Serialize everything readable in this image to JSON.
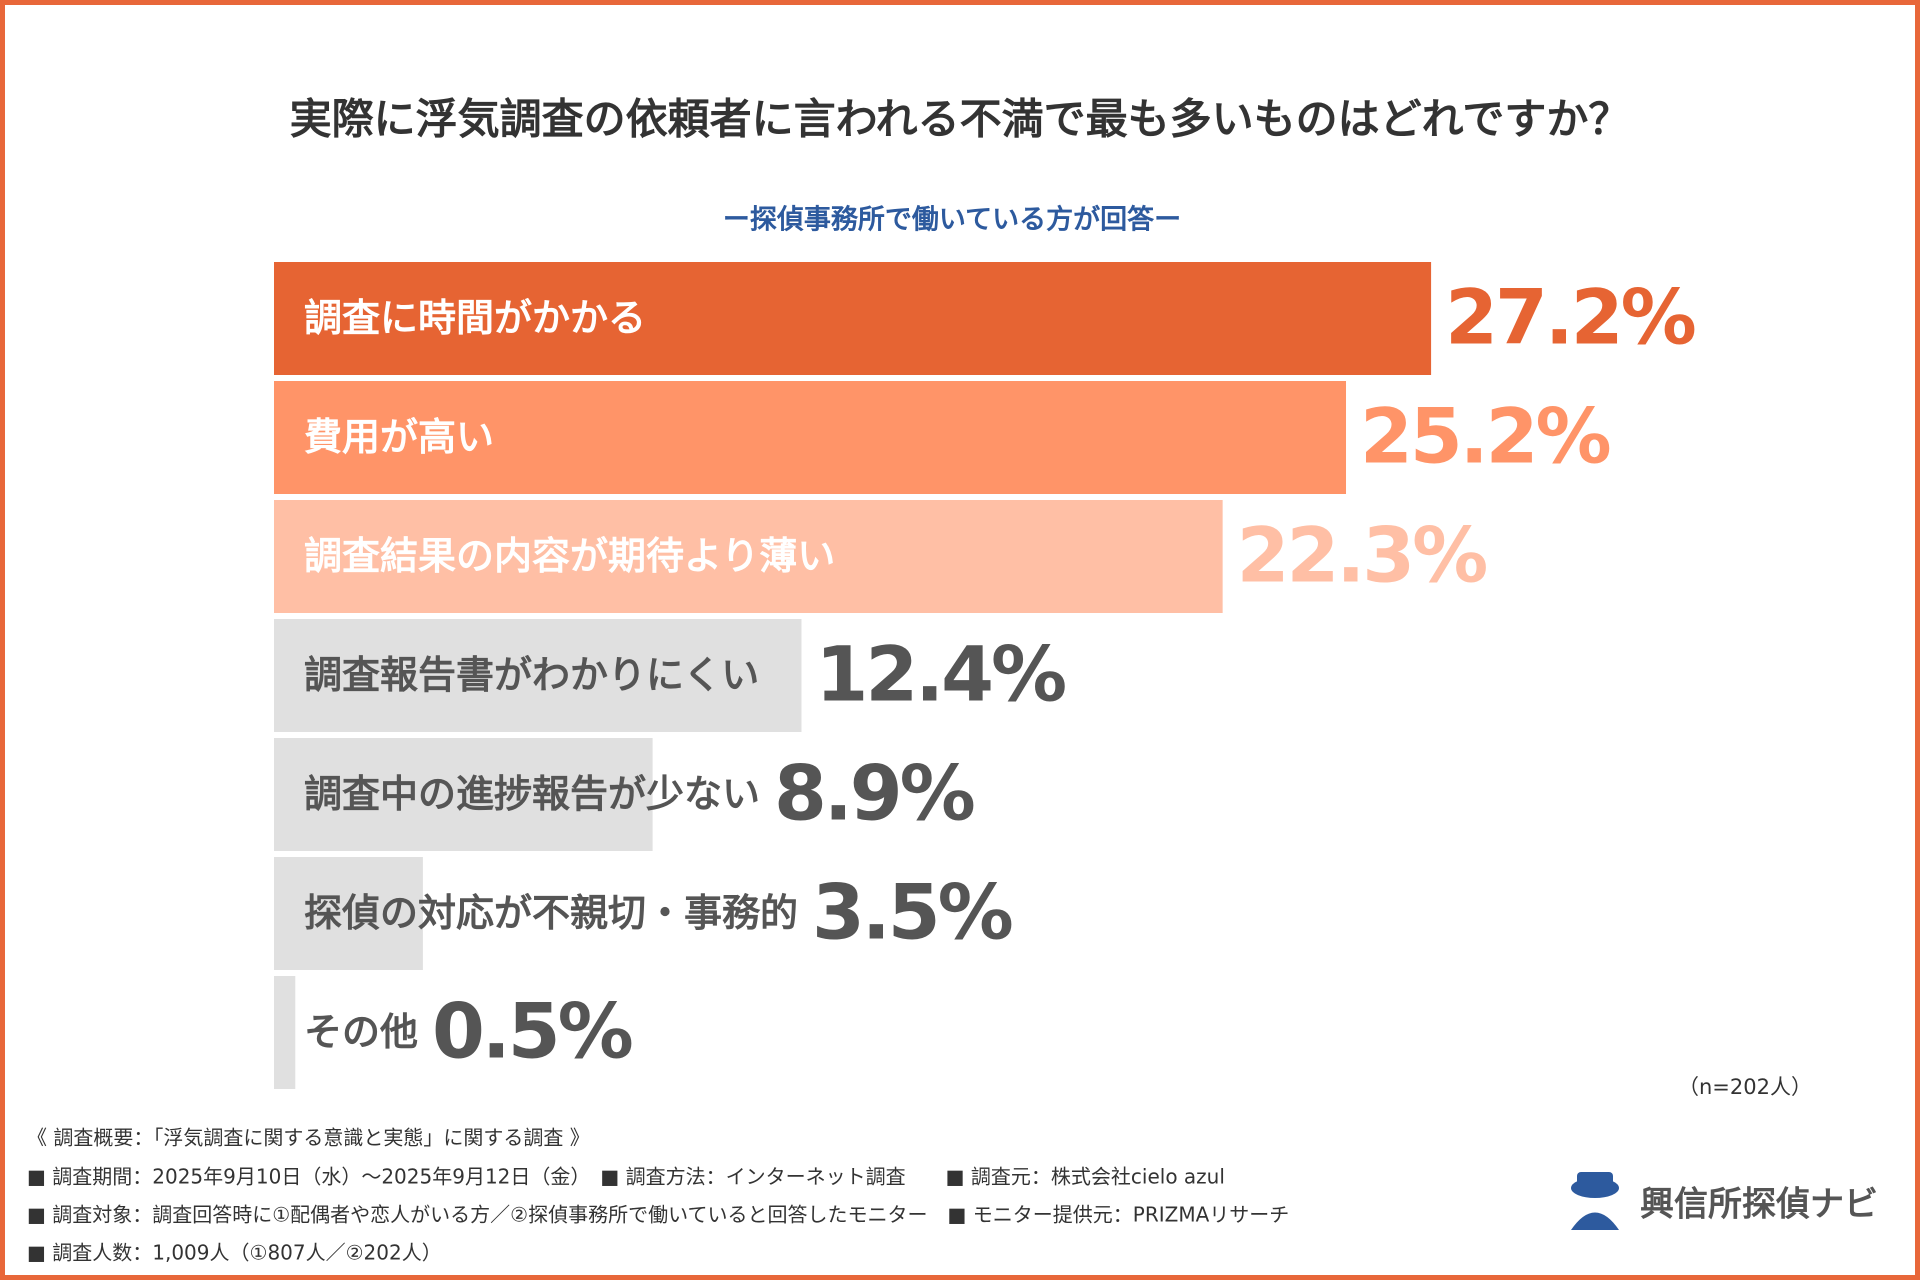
{
  "chart_data": {
    "type": "bar",
    "orientation": "horizontal",
    "title": "実際に浮気調査の依頼者に言われる不満で最も多いものはどれですか？",
    "subtitle": "ー探偵事務所で働いている方が回答ー",
    "categories": [
      "調査に時間がかかる",
      "費用が高い",
      "調査結果の内容が期待より薄い",
      "調査報告書がわかりにくい",
      "調査中の進捗報告が少ない",
      "探偵の対応が不親切・事務的",
      "その他"
    ],
    "values": [
      27.2,
      25.2,
      22.3,
      12.4,
      8.9,
      3.5,
      0.5
    ],
    "value_labels": [
      "27.2%",
      "25.2%",
      "22.3%",
      "12.4%",
      "8.9%",
      "3.5%",
      "0.5%"
    ],
    "colors": [
      "#e66433",
      "#ff9468",
      "#ffbfa5",
      "#e0e0e0",
      "#e0e0e0",
      "#e0e0e0",
      "#e0e0e0"
    ],
    "sample_note": "（n=202人）",
    "notes": [
      "《 調査概要：「浮気調査に関する意識と実態」に関する調査 》",
      "■ 調査期間：2025年9月10日（水）〜2025年9月12日（金）　■ 調査方法：インターネット調査　　■ 調査元：株式会社cielo azul",
      "■ 調査対象：調査回答時に①配偶者や恋人がいる方／②探偵事務所で働いていると回答したモニター　■ モニター提供元：PRIZMAリサーチ",
      "■ 調査人数：1,009人（①807人／②202人）"
    ],
    "logo": "興信所探偵ナビ"
  }
}
